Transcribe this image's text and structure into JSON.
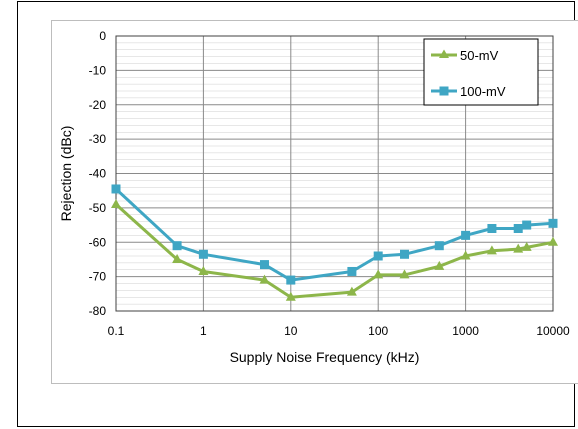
{
  "chart_data": {
    "type": "line",
    "title": "",
    "xlabel": "Supply Noise Frequency (kHz)",
    "ylabel": "Rejection (dBc)",
    "xscale": "log",
    "xlim": [
      0.1,
      10000
    ],
    "ylim": [
      -80,
      0
    ],
    "xticks": [
      0.1,
      1,
      10,
      100,
      1000,
      10000
    ],
    "xtick_labels": [
      "0.1",
      "1",
      "10",
      "100",
      "1000",
      "10000"
    ],
    "yticks": [
      0,
      -10,
      -20,
      -30,
      -40,
      -50,
      -60,
      -70,
      -80
    ],
    "ytick_labels": [
      "0",
      "-10",
      "-20",
      "-30",
      "-40",
      "-50",
      "-60",
      "-70",
      "-80"
    ],
    "grid": true,
    "legend_position": "top-right",
    "series": [
      {
        "name": "50-mV",
        "color": "#8db64a",
        "marker": "triangle",
        "x": [
          0.1,
          0.5,
          1,
          5,
          10,
          50,
          100,
          200,
          500,
          1000,
          2000,
          4000,
          5000,
          10000
        ],
        "y": [
          -49,
          -65,
          -68.5,
          -71,
          -76,
          -74.5,
          -69.5,
          -69.5,
          -67,
          -64,
          -62.5,
          -62,
          -61.5,
          -60
        ]
      },
      {
        "name": "100-mV",
        "color": "#3fa6c4",
        "marker": "square",
        "x": [
          0.1,
          0.5,
          1,
          5,
          10,
          50,
          100,
          200,
          500,
          1000,
          2000,
          4000,
          5000,
          10000
        ],
        "y": [
          -44.5,
          -61,
          -63.5,
          -66.5,
          -71,
          -68.5,
          -64,
          -63.5,
          -61,
          -58,
          -56,
          -56,
          -55,
          -54.5
        ]
      }
    ]
  }
}
